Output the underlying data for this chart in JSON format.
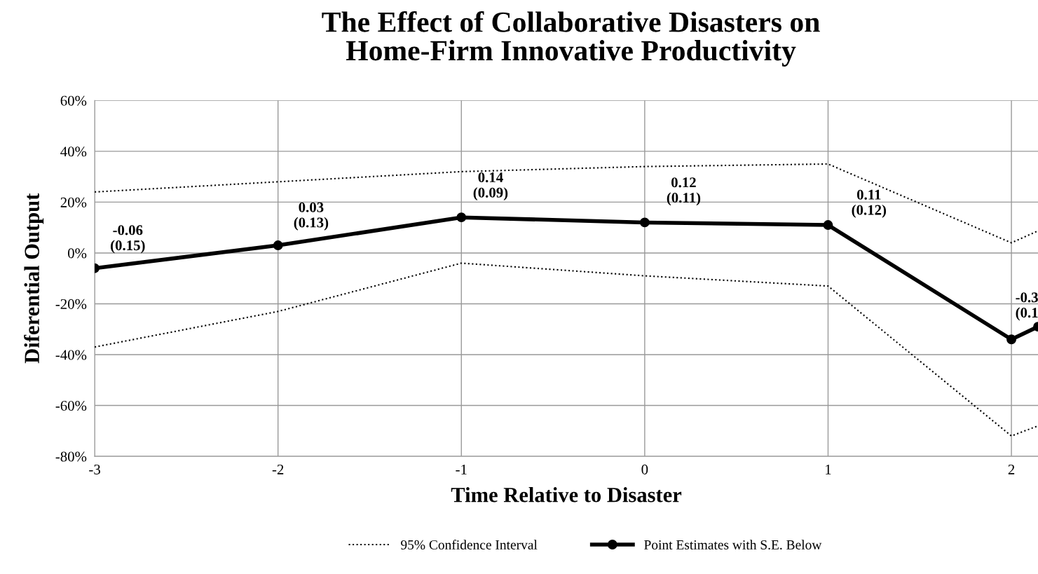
{
  "chart_data": {
    "type": "line",
    "title": "The Effect of Collaborative Disasters on\nHome-Firm Innovative Productivity",
    "xlabel": "Time Relative to Disaster",
    "ylabel": "Diferential Output",
    "x": [
      -3,
      -2,
      -1,
      0,
      1,
      2,
      2.145
    ],
    "series": [
      {
        "name": "95% Confidence Interval",
        "color": "#000000",
        "line_style": "dotted",
        "marker": "none",
        "values": [
          24,
          28,
          32,
          34,
          35,
          4,
          8.7
        ]
      },
      {
        "color": "#000000",
        "line_style": "dotted",
        "marker": "none",
        "values": [
          -37,
          -23,
          -4,
          -9,
          -13,
          -72,
          -68
        ]
      },
      {
        "name": "Point Estimates with S.E. Below",
        "color": "#000000",
        "line_style": "solid",
        "marker": "circle",
        "values": [
          -6,
          3,
          14,
          12,
          11,
          -34,
          -29
        ]
      }
    ],
    "annotations": [
      {
        "text": "-0.06\n(0.15)",
        "x": -3,
        "y": -6
      },
      {
        "text": "0.03\n(0.13)",
        "x": -2,
        "y": 3
      },
      {
        "text": "0.14\n(0.09)",
        "x": -1,
        "y": 14
      },
      {
        "text": "0.12\n(0.11)",
        "x": 0,
        "y": 12
      },
      {
        "text": "0.11\n(0.12)",
        "x": 1,
        "y": 11
      },
      {
        "text": "-0.3\n(0.1",
        "x": 2,
        "y": -34
      }
    ],
    "xlim": [
      -3,
      2.145
    ],
    "xticks": [
      -3,
      -2,
      -1,
      0,
      1,
      2
    ],
    "ylim": [
      -80,
      60
    ],
    "yticks": [
      {
        "value": -80,
        "label": "-80%"
      },
      {
        "value": -60,
        "label": "-60%"
      },
      {
        "value": -40,
        "label": "-40%"
      },
      {
        "value": -20,
        "label": "-20%"
      },
      {
        "value": 0,
        "label": "0%"
      },
      {
        "value": 20,
        "label": "20%"
      },
      {
        "value": 40,
        "label": "40%"
      },
      {
        "value": 60,
        "label": "60%"
      }
    ],
    "grid": true,
    "legend": "bottom"
  }
}
